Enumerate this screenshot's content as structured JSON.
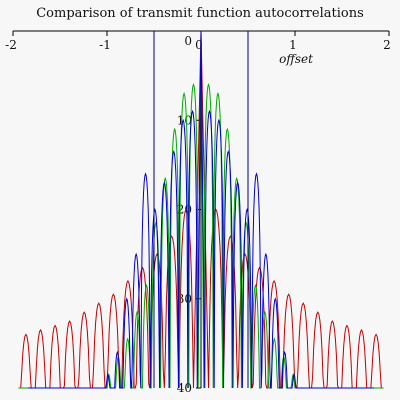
{
  "chart_data": {
    "type": "line",
    "title": "Comparison of transmit function autocorrelations",
    "xlabel": "offset",
    "ylabel": "",
    "xlim": [
      -2,
      2
    ],
    "ylim": [
      0,
      -40
    ],
    "x_ticks": [
      -2,
      -1,
      0,
      1,
      2
    ],
    "y_ticks": [
      0,
      -10,
      -20,
      -30,
      -40
    ],
    "y_tick_labels": [
      "0",
      "10",
      "20",
      "30",
      "40"
    ],
    "grid": false,
    "vertical_markers": [
      -0.5,
      0.5
    ],
    "series": [
      {
        "color": "#c00000",
        "main_lobe_halfwidth": 0.08,
        "sidelobe_period": 0.155,
        "peak_db": [
          -20,
          -23,
          -25,
          -26.5,
          -28,
          -29.5,
          -30.5,
          -31.5,
          -32.5,
          -33,
          -33.5,
          -34
        ]
      },
      {
        "color": "#00aa00",
        "main_lobe_halfwidth": 0.03,
        "sidelobe_period": 0.1,
        "peak_db": [
          -6,
          -7,
          -11,
          -16.5,
          -21.5,
          -28.5,
          -31.5,
          -34.5,
          -36.5,
          -38.5,
          -40,
          -40,
          -40,
          -40,
          -40,
          -40,
          -40,
          -40,
          -40
        ]
      },
      {
        "color": "#0000cc",
        "main_lobe_halfwidth": 0.04,
        "sidelobe_period": 0.1,
        "peak_db": [
          -9,
          -10,
          -13.5,
          -17,
          -20,
          -16,
          -25,
          -30,
          -36,
          -38.5,
          -40,
          -40,
          -40,
          -40,
          -40,
          -40,
          -40,
          -40
        ]
      }
    ]
  },
  "colors": {
    "background": "#f7f7f7",
    "axis": "#000000",
    "marker": "#000080"
  }
}
